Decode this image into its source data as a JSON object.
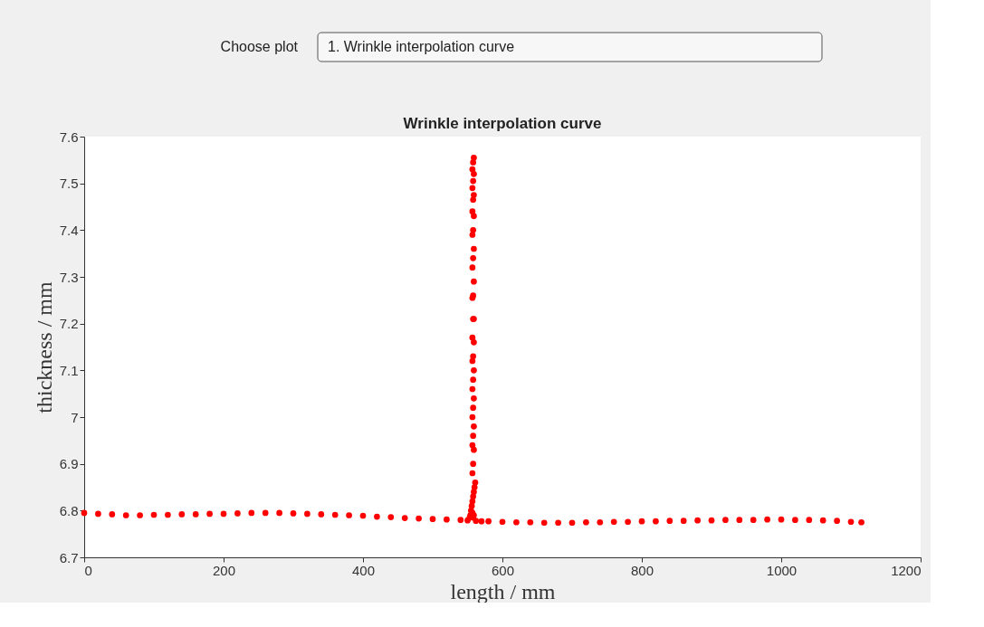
{
  "chart_data": {
    "type": "scatter",
    "title": "Wrinkle interpolation curve",
    "xlabel": "length / mm",
    "ylabel": "thickness / mm",
    "annotations": [
      "Choose plot",
      "1. Wrinkle interpolation curve"
    ],
    "xlim": [
      0,
      1200
    ],
    "xticks": [
      0,
      200,
      400,
      600,
      800,
      1000,
      1200
    ],
    "ylim": [
      6.7,
      7.6
    ],
    "yticks": [
      6.7,
      6.8,
      6.9,
      7,
      7.1,
      7.2,
      7.3,
      7.4,
      7.5,
      7.6
    ],
    "grid": false,
    "legend": false,
    "marker": "circle",
    "series": [
      {
        "color": "#ff0000",
        "x": [
          0,
          20,
          40,
          60,
          80,
          100,
          120,
          140,
          160,
          180,
          200,
          220,
          240,
          260,
          280,
          300,
          320,
          340,
          360,
          380,
          400,
          420,
          440,
          460,
          480,
          500,
          520,
          540,
          550,
          553,
          554,
          555,
          556,
          557,
          558,
          559,
          560,
          561,
          557,
          558,
          559,
          557,
          558,
          559,
          557,
          558,
          559,
          557,
          558,
          559,
          557,
          558,
          559,
          557,
          558,
          559,
          557,
          558,
          559,
          557,
          558,
          559,
          557,
          558,
          559,
          557,
          558,
          559,
          557,
          558,
          559,
          557,
          558,
          559,
          557,
          558,
          559,
          562,
          570,
          580,
          600,
          620,
          640,
          660,
          680,
          700,
          720,
          740,
          760,
          780,
          800,
          820,
          840,
          860,
          880,
          900,
          920,
          940,
          960,
          980,
          1000,
          1020,
          1040,
          1060,
          1080,
          1100,
          1115
        ],
        "values": [
          6.795,
          6.793,
          6.792,
          6.79,
          6.79,
          6.791,
          6.791,
          6.792,
          6.792,
          6.793,
          6.793,
          6.794,
          6.795,
          6.795,
          6.795,
          6.794,
          6.793,
          6.792,
          6.791,
          6.79,
          6.789,
          6.787,
          6.786,
          6.784,
          6.783,
          6.782,
          6.781,
          6.78,
          6.779,
          6.785,
          6.79,
          6.8,
          6.81,
          6.82,
          6.83,
          6.84,
          6.85,
          6.86,
          6.88,
          6.9,
          6.93,
          6.94,
          6.96,
          6.98,
          7.0,
          7.02,
          7.04,
          7.06,
          7.08,
          7.1,
          7.12,
          7.13,
          7.16,
          7.17,
          7.21,
          7.21,
          7.255,
          7.26,
          7.29,
          7.32,
          7.34,
          7.36,
          7.39,
          7.4,
          7.43,
          7.44,
          7.465,
          7.475,
          7.49,
          7.505,
          7.52,
          7.53,
          7.545,
          7.555,
          6.795,
          6.785,
          6.79,
          6.778,
          6.777,
          6.777,
          6.776,
          6.775,
          6.775,
          6.774,
          6.774,
          6.774,
          6.775,
          6.775,
          6.776,
          6.776,
          6.777,
          6.777,
          6.778,
          6.778,
          6.779,
          6.779,
          6.78,
          6.78,
          6.78,
          6.781,
          6.781,
          6.78,
          6.78,
          6.779,
          6.778,
          6.776,
          6.775
        ]
      }
    ]
  }
}
